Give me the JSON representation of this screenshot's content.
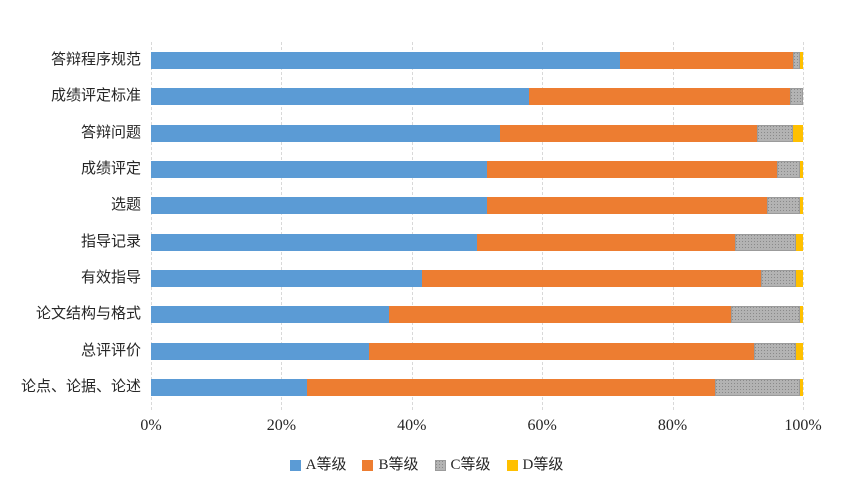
{
  "chart_data": {
    "type": "bar",
    "orientation": "horizontal",
    "stacked": true,
    "title": "",
    "xlabel": "",
    "ylabel": "",
    "unit": "percent",
    "xlim": [
      0,
      100
    ],
    "x_ticks": [
      "0%",
      "20%",
      "40%",
      "60%",
      "80%",
      "100%"
    ],
    "grid": "vertical-dashed",
    "legend_position": "bottom-center",
    "gridline_color": "#d9d9d9",
    "categories": [
      "答辩程序规范",
      "成绩评定标准",
      "答辩问题",
      "成绩评定",
      "选题",
      "指导记录",
      "有效指导",
      "论文结构与格式",
      "总评评价",
      "论点、论据、论述"
    ],
    "series": [
      {
        "key": "A",
        "name": "A等级",
        "color": "#5b9bd5",
        "pattern": null,
        "values": [
          72,
          58,
          53.5,
          51.5,
          51.5,
          50,
          41.5,
          36.5,
          33.5,
          24
        ]
      },
      {
        "key": "B",
        "name": "B等级",
        "color": "#ed7d31",
        "pattern": null,
        "values": [
          26.5,
          40,
          39.5,
          44.5,
          43,
          39.5,
          52,
          52.5,
          59,
          62.5
        ]
      },
      {
        "key": "C",
        "name": "C等级",
        "color": "#b3b3b3",
        "pattern": "dotted",
        "values": [
          1,
          2,
          5.5,
          3.5,
          5,
          9.5,
          5.5,
          10.5,
          6.5,
          13
        ]
      },
      {
        "key": "D",
        "name": "D等级",
        "color": "#ffc000",
        "pattern": null,
        "values": [
          0.5,
          0,
          1.5,
          0.5,
          0.5,
          1,
          1,
          0.5,
          1,
          0.5
        ]
      }
    ]
  }
}
